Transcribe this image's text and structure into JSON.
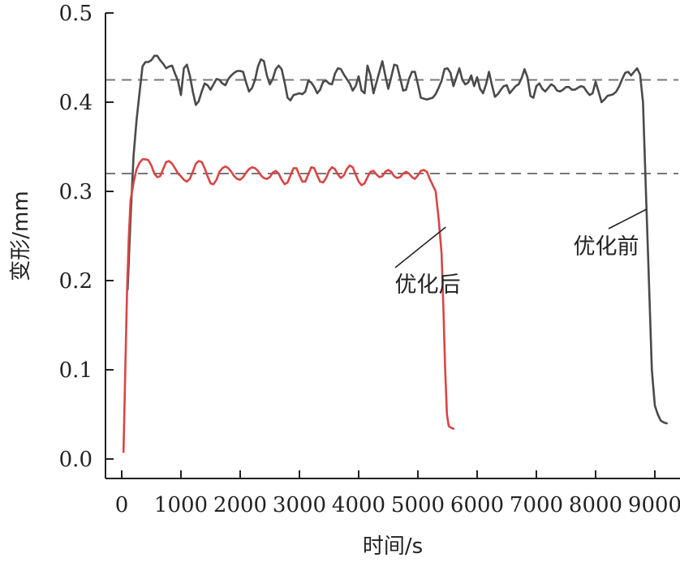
{
  "chart_data": {
    "type": "line",
    "xlabel": "时间/s",
    "ylabel": "变形/mm",
    "xlim": [
      0,
      9300
    ],
    "ylim": [
      0,
      0.5
    ],
    "xticks": [
      0,
      1000,
      2000,
      3000,
      4000,
      5000,
      6000,
      7000,
      8000,
      9000
    ],
    "yticks": [
      0.0,
      0.1,
      0.2,
      0.3,
      0.4,
      0.5
    ],
    "xtick_labels": [
      "0",
      "1000",
      "2000",
      "3000",
      "4000",
      "5000",
      "6000",
      "7000",
      "8000",
      "9000"
    ],
    "ytick_labels": [
      "0.0",
      "0.1",
      "0.2",
      "0.3",
      "0.4",
      "0.5"
    ],
    "grid": false,
    "reference_lines": [
      {
        "y": 0.425,
        "style": "dashed",
        "color": "#777777"
      },
      {
        "y": 0.32,
        "style": "dashed",
        "color": "#777777"
      }
    ],
    "series": [
      {
        "key": "before",
        "color": "#4a4a4a",
        "points": [
          [
            100,
            0.19
          ],
          [
            150,
            0.27
          ],
          [
            200,
            0.34
          ],
          [
            250,
            0.38
          ],
          [
            300,
            0.41
          ],
          [
            350,
            0.44
          ],
          [
            400,
            0.445
          ],
          [
            450,
            0.445
          ],
          [
            500,
            0.447
          ],
          [
            550,
            0.452
          ],
          [
            600,
            0.452
          ],
          [
            650,
            0.447
          ],
          [
            700,
            0.443
          ],
          [
            750,
            0.438
          ],
          [
            800,
            0.44
          ],
          [
            850,
            0.441
          ],
          [
            900,
            0.432
          ],
          [
            950,
            0.424
          ],
          [
            1000,
            0.408
          ],
          [
            1050,
            0.438
          ],
          [
            1100,
            0.442
          ],
          [
            1150,
            0.43
          ],
          [
            1200,
            0.412
          ],
          [
            1250,
            0.397
          ],
          [
            1300,
            0.401
          ],
          [
            1350,
            0.412
          ],
          [
            1400,
            0.421
          ],
          [
            1450,
            0.419
          ],
          [
            1500,
            0.414
          ],
          [
            1550,
            0.42
          ],
          [
            1600,
            0.426
          ],
          [
            1650,
            0.425
          ],
          [
            1700,
            0.421
          ],
          [
            1750,
            0.419
          ],
          [
            1800,
            0.426
          ],
          [
            1850,
            0.43
          ],
          [
            1900,
            0.433
          ],
          [
            1950,
            0.435
          ],
          [
            2000,
            0.435
          ],
          [
            2050,
            0.434
          ],
          [
            2100,
            0.422
          ],
          [
            2150,
            0.412
          ],
          [
            2200,
            0.416
          ],
          [
            2250,
            0.425
          ],
          [
            2300,
            0.44
          ],
          [
            2350,
            0.448
          ],
          [
            2400,
            0.446
          ],
          [
            2450,
            0.43
          ],
          [
            2500,
            0.42
          ],
          [
            2550,
            0.426
          ],
          [
            2600,
            0.437
          ],
          [
            2650,
            0.441
          ],
          [
            2700,
            0.437
          ],
          [
            2750,
            0.422
          ],
          [
            2800,
            0.405
          ],
          [
            2850,
            0.402
          ],
          [
            2900,
            0.408
          ],
          [
            2950,
            0.409
          ],
          [
            3000,
            0.41
          ],
          [
            3050,
            0.409
          ],
          [
            3100,
            0.412
          ],
          [
            3150,
            0.424
          ],
          [
            3200,
            0.422
          ],
          [
            3250,
            0.417
          ],
          [
            3300,
            0.41
          ],
          [
            3350,
            0.414
          ],
          [
            3400,
            0.423
          ],
          [
            3450,
            0.424
          ],
          [
            3500,
            0.421
          ],
          [
            3550,
            0.42
          ],
          [
            3600,
            0.432
          ],
          [
            3650,
            0.438
          ],
          [
            3700,
            0.437
          ],
          [
            3750,
            0.431
          ],
          [
            3800,
            0.426
          ],
          [
            3850,
            0.421
          ],
          [
            3900,
            0.413
          ],
          [
            3950,
            0.418
          ],
          [
            4000,
            0.429
          ],
          [
            4050,
            0.413
          ],
          [
            4100,
            0.41
          ],
          [
            4150,
            0.441
          ],
          [
            4200,
            0.43
          ],
          [
            4250,
            0.41
          ],
          [
            4300,
            0.422
          ],
          [
            4350,
            0.434
          ],
          [
            4400,
            0.446
          ],
          [
            4450,
            0.43
          ],
          [
            4500,
            0.415
          ],
          [
            4550,
            0.428
          ],
          [
            4600,
            0.442
          ],
          [
            4650,
            0.441
          ],
          [
            4700,
            0.427
          ],
          [
            4750,
            0.413
          ],
          [
            4800,
            0.414
          ],
          [
            4850,
            0.426
          ],
          [
            4900,
            0.434
          ],
          [
            4950,
            0.434
          ],
          [
            5000,
            0.42
          ],
          [
            5050,
            0.405
          ],
          [
            5100,
            0.404
          ],
          [
            5150,
            0.403
          ],
          [
            5200,
            0.404
          ],
          [
            5250,
            0.405
          ],
          [
            5300,
            0.409
          ],
          [
            5350,
            0.416
          ],
          [
            5400,
            0.424
          ],
          [
            5450,
            0.437
          ],
          [
            5500,
            0.438
          ],
          [
            5550,
            0.433
          ],
          [
            5600,
            0.418
          ],
          [
            5650,
            0.428
          ],
          [
            5700,
            0.438
          ],
          [
            5750,
            0.425
          ],
          [
            5800,
            0.42
          ],
          [
            5850,
            0.422
          ],
          [
            5900,
            0.43
          ],
          [
            5950,
            0.418
          ],
          [
            6000,
            0.428
          ],
          [
            6050,
            0.415
          ],
          [
            6100,
            0.41
          ],
          [
            6150,
            0.42
          ],
          [
            6200,
            0.434
          ],
          [
            6250,
            0.419
          ],
          [
            6300,
            0.406
          ],
          [
            6350,
            0.409
          ],
          [
            6400,
            0.414
          ],
          [
            6450,
            0.418
          ],
          [
            6500,
            0.419
          ],
          [
            6550,
            0.41
          ],
          [
            6600,
            0.414
          ],
          [
            6650,
            0.418
          ],
          [
            6700,
            0.42
          ],
          [
            6750,
            0.427
          ],
          [
            6800,
            0.437
          ],
          [
            6850,
            0.428
          ],
          [
            6900,
            0.407
          ],
          [
            6950,
            0.405
          ],
          [
            7000,
            0.418
          ],
          [
            7050,
            0.421
          ],
          [
            7100,
            0.415
          ],
          [
            7150,
            0.412
          ],
          [
            7200,
            0.416
          ],
          [
            7250,
            0.42
          ],
          [
            7300,
            0.418
          ],
          [
            7350,
            0.413
          ],
          [
            7400,
            0.412
          ],
          [
            7450,
            0.414
          ],
          [
            7500,
            0.417
          ],
          [
            7550,
            0.417
          ],
          [
            7600,
            0.414
          ],
          [
            7650,
            0.414
          ],
          [
            7700,
            0.416
          ],
          [
            7750,
            0.418
          ],
          [
            7800,
            0.417
          ],
          [
            7850,
            0.412
          ],
          [
            7900,
            0.408
          ],
          [
            7950,
            0.41
          ],
          [
            8000,
            0.423
          ],
          [
            8050,
            0.412
          ],
          [
            8100,
            0.4
          ],
          [
            8150,
            0.403
          ],
          [
            8200,
            0.407
          ],
          [
            8250,
            0.408
          ],
          [
            8300,
            0.409
          ],
          [
            8350,
            0.412
          ],
          [
            8400,
            0.418
          ],
          [
            8450,
            0.426
          ],
          [
            8500,
            0.433
          ],
          [
            8550,
            0.434
          ],
          [
            8600,
            0.43
          ],
          [
            8650,
            0.434
          ],
          [
            8700,
            0.438
          ],
          [
            8750,
            0.431
          ],
          [
            8800,
            0.4
          ],
          [
            8850,
            0.3
          ],
          [
            8900,
            0.2
          ],
          [
            8950,
            0.1
          ],
          [
            9000,
            0.06
          ],
          [
            9050,
            0.05
          ],
          [
            9100,
            0.043
          ],
          [
            9150,
            0.041
          ],
          [
            9200,
            0.04
          ]
        ]
      },
      {
        "key": "after",
        "color": "#d94545",
        "points": [
          [
            30,
            0.008
          ],
          [
            60,
            0.1
          ],
          [
            90,
            0.19
          ],
          [
            120,
            0.25
          ],
          [
            150,
            0.29
          ],
          [
            200,
            0.31
          ],
          [
            250,
            0.325
          ],
          [
            300,
            0.332
          ],
          [
            350,
            0.336
          ],
          [
            400,
            0.336
          ],
          [
            450,
            0.335
          ],
          [
            500,
            0.329
          ],
          [
            550,
            0.32
          ],
          [
            600,
            0.316
          ],
          [
            650,
            0.317
          ],
          [
            700,
            0.325
          ],
          [
            750,
            0.333
          ],
          [
            800,
            0.334
          ],
          [
            850,
            0.331
          ],
          [
            900,
            0.326
          ],
          [
            950,
            0.32
          ],
          [
            1000,
            0.317
          ],
          [
            1050,
            0.313
          ],
          [
            1100,
            0.311
          ],
          [
            1150,
            0.314
          ],
          [
            1200,
            0.322
          ],
          [
            1250,
            0.331
          ],
          [
            1300,
            0.334
          ],
          [
            1350,
            0.333
          ],
          [
            1400,
            0.326
          ],
          [
            1450,
            0.317
          ],
          [
            1500,
            0.309
          ],
          [
            1550,
            0.308
          ],
          [
            1600,
            0.313
          ],
          [
            1650,
            0.322
          ],
          [
            1700,
            0.326
          ],
          [
            1750,
            0.328
          ],
          [
            1800,
            0.326
          ],
          [
            1850,
            0.322
          ],
          [
            1900,
            0.317
          ],
          [
            1950,
            0.314
          ],
          [
            2000,
            0.313
          ],
          [
            2050,
            0.316
          ],
          [
            2100,
            0.321
          ],
          [
            2150,
            0.325
          ],
          [
            2200,
            0.327
          ],
          [
            2250,
            0.326
          ],
          [
            2300,
            0.323
          ],
          [
            2350,
            0.318
          ],
          [
            2400,
            0.315
          ],
          [
            2450,
            0.314
          ],
          [
            2500,
            0.316
          ],
          [
            2550,
            0.321
          ],
          [
            2600,
            0.323
          ],
          [
            2650,
            0.32
          ],
          [
            2700,
            0.313
          ],
          [
            2750,
            0.308
          ],
          [
            2800,
            0.31
          ],
          [
            2850,
            0.318
          ],
          [
            2900,
            0.326
          ],
          [
            2950,
            0.326
          ],
          [
            3000,
            0.318
          ],
          [
            3050,
            0.311
          ],
          [
            3100,
            0.311
          ],
          [
            3150,
            0.319
          ],
          [
            3200,
            0.327
          ],
          [
            3250,
            0.326
          ],
          [
            3300,
            0.318
          ],
          [
            3350,
            0.311
          ],
          [
            3400,
            0.31
          ],
          [
            3450,
            0.315
          ],
          [
            3500,
            0.323
          ],
          [
            3550,
            0.327
          ],
          [
            3600,
            0.325
          ],
          [
            3650,
            0.319
          ],
          [
            3700,
            0.315
          ],
          [
            3750,
            0.318
          ],
          [
            3800,
            0.325
          ],
          [
            3850,
            0.329
          ],
          [
            3900,
            0.327
          ],
          [
            3950,
            0.319
          ],
          [
            4000,
            0.311
          ],
          [
            4050,
            0.307
          ],
          [
            4100,
            0.309
          ],
          [
            4150,
            0.316
          ],
          [
            4200,
            0.322
          ],
          [
            4250,
            0.323
          ],
          [
            4300,
            0.319
          ],
          [
            4350,
            0.316
          ],
          [
            4400,
            0.317
          ],
          [
            4450,
            0.322
          ],
          [
            4500,
            0.324
          ],
          [
            4550,
            0.322
          ],
          [
            4600,
            0.317
          ],
          [
            4650,
            0.315
          ],
          [
            4700,
            0.316
          ],
          [
            4750,
            0.32
          ],
          [
            4800,
            0.322
          ],
          [
            4850,
            0.32
          ],
          [
            4900,
            0.316
          ],
          [
            4950,
            0.314
          ],
          [
            5000,
            0.318
          ],
          [
            5050,
            0.323
          ],
          [
            5100,
            0.324
          ],
          [
            5150,
            0.322
          ],
          [
            5200,
            0.314
          ],
          [
            5300,
            0.3
          ],
          [
            5350,
            0.27
          ],
          [
            5400,
            0.23
          ],
          [
            5430,
            0.17
          ],
          [
            5460,
            0.1
          ],
          [
            5490,
            0.05
          ],
          [
            5520,
            0.037
          ],
          [
            5560,
            0.035
          ],
          [
            5600,
            0.034
          ]
        ]
      }
    ],
    "annotations": [
      {
        "text": "优化后",
        "points_to": [
          5470,
          0.26
        ]
      },
      {
        "text": "优化前",
        "points_to": [
          8860,
          0.28
        ]
      }
    ]
  }
}
